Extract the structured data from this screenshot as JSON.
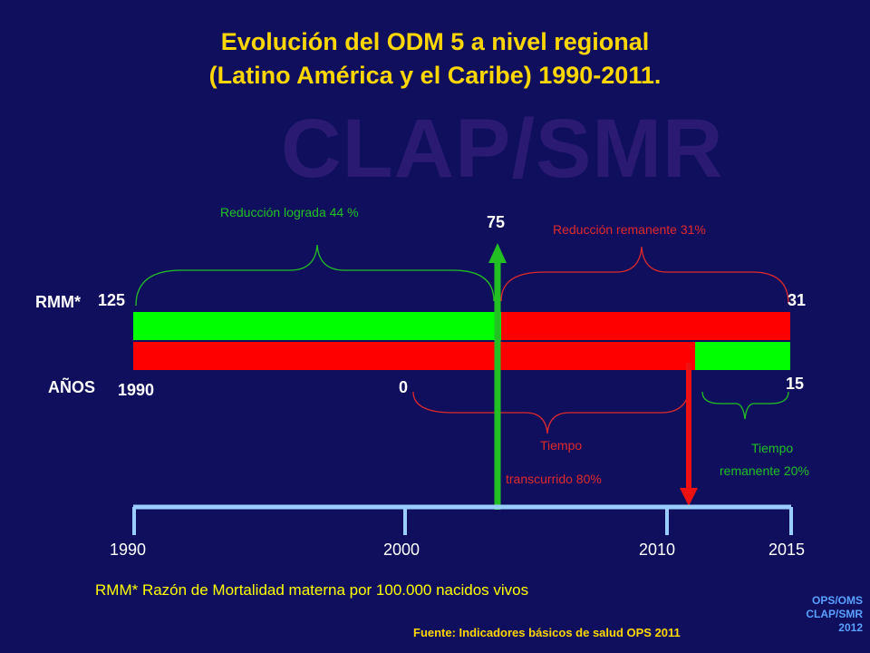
{
  "title": {
    "line1": "Evolución del ODM 5 a nivel regional",
    "line2": "(Latino América y el Caribe) 1990-2011."
  },
  "watermark": "CLAP/SMR",
  "labels": {
    "reduction_achieved": "Reducción lograda 44 %",
    "reduction_remaining": "Reducción remanente 31%",
    "value_75": "75",
    "rmm_prefix": "RMM*",
    "rmm_start": "125",
    "rmm_target": "31",
    "years_prefix": "AÑOS",
    "years_start": "1990",
    "years_zero": "0",
    "years_15": "15",
    "time_elapsed_line1": "Tiempo",
    "time_elapsed_line2": "transcurrido  80%",
    "time_remaining_line1": "Tiempo",
    "time_remaining_line2": "remanente 20%"
  },
  "timeline": {
    "ticks": [
      "1990",
      "2000",
      "2010",
      "2015"
    ]
  },
  "footnote": "RMM* Razón de Mortalidad materna por 100.000 nacidos vivos",
  "source": "Fuente: Indicadores básicos de salud OPS 2011",
  "corner": {
    "line1": "OPS/OMS",
    "line2": "CLAP/SMR",
    "line3": "2012"
  },
  "colors": {
    "background": "#0f0f5e",
    "title": "#ffd700",
    "green": "#00ff00",
    "red": "#ff0000",
    "timeline": "#99ccff"
  }
}
